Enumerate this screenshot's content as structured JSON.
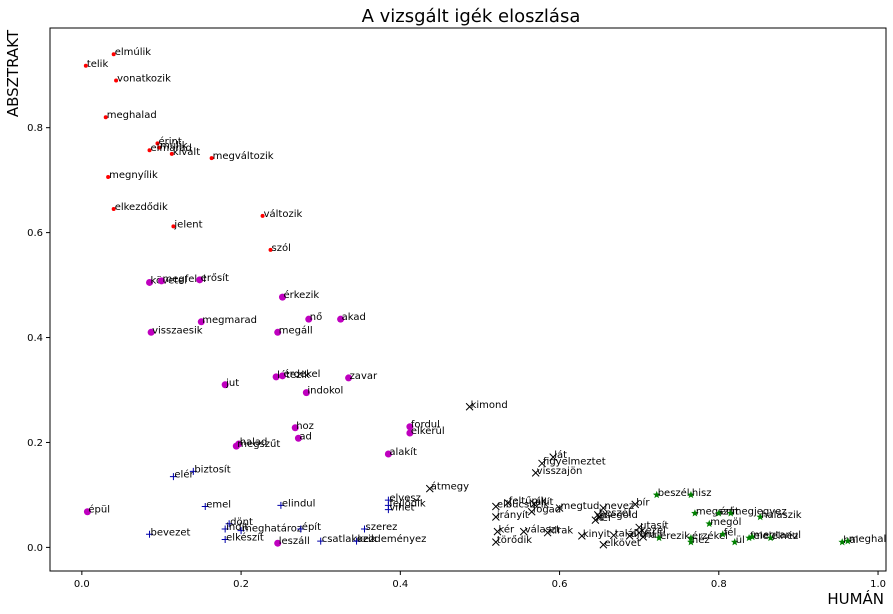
{
  "chart_data": {
    "type": "scatter",
    "title": "A vizsgált igék eloszlása",
    "xlabel": "HUMÁN",
    "ylabel": "ABSZTRAKT",
    "xlim": [
      -0.04,
      1.01
    ],
    "ylim": [
      -0.045,
      0.99
    ],
    "xticks": [
      "0.0",
      "0.2",
      "0.4",
      "0.6",
      "0.8",
      "1.0"
    ],
    "xtick_values": [
      0.0,
      0.2,
      0.4,
      0.6,
      0.8,
      1.0
    ],
    "yticks": [
      "0.0",
      "0.2",
      "0.4",
      "0.6",
      "0.8"
    ],
    "ytick_values": [
      0.0,
      0.2,
      0.4,
      0.6,
      0.8
    ],
    "grid": false,
    "legend": false,
    "series": [
      {
        "color": "#ff0000",
        "marker": "small-dot",
        "points": [
          {
            "x": 0.04,
            "y": 0.94,
            "label": "elmúlik"
          },
          {
            "x": 0.005,
            "y": 0.918,
            "label": "telik"
          },
          {
            "x": 0.043,
            "y": 0.89,
            "label": "vonatkozik"
          },
          {
            "x": 0.03,
            "y": 0.82,
            "label": "meghalad"
          },
          {
            "x": 0.095,
            "y": 0.77,
            "label": "érint"
          },
          {
            "x": 0.097,
            "y": 0.762,
            "label": "múlik"
          },
          {
            "x": 0.085,
            "y": 0.757,
            "label": "elmarad"
          },
          {
            "x": 0.113,
            "y": 0.75,
            "label": "kivált"
          },
          {
            "x": 0.163,
            "y": 0.742,
            "label": "megváltozik"
          },
          {
            "x": 0.033,
            "y": 0.706,
            "label": "megnyílik"
          },
          {
            "x": 0.04,
            "y": 0.645,
            "label": "elkezdődik"
          },
          {
            "x": 0.227,
            "y": 0.632,
            "label": "változik"
          },
          {
            "x": 0.115,
            "y": 0.612,
            "label": "jelent"
          },
          {
            "x": 0.237,
            "y": 0.567,
            "label": "szól"
          }
        ]
      },
      {
        "color": "#bf00bf",
        "marker": "dot",
        "points": [
          {
            "x": 0.085,
            "y": 0.505,
            "label": "követel"
          },
          {
            "x": 0.1,
            "y": 0.508,
            "label": "megfelel"
          },
          {
            "x": 0.148,
            "y": 0.51,
            "label": "erősít"
          },
          {
            "x": 0.252,
            "y": 0.477,
            "label": "érkezik"
          },
          {
            "x": 0.15,
            "y": 0.43,
            "label": "megmarad"
          },
          {
            "x": 0.285,
            "y": 0.435,
            "label": "nő"
          },
          {
            "x": 0.325,
            "y": 0.435,
            "label": "akad"
          },
          {
            "x": 0.087,
            "y": 0.41,
            "label": "visszaesik"
          },
          {
            "x": 0.246,
            "y": 0.41,
            "label": "megáll"
          },
          {
            "x": 0.244,
            "y": 0.325,
            "label": "létezik"
          },
          {
            "x": 0.252,
            "y": 0.327,
            "label": "érdekel"
          },
          {
            "x": 0.335,
            "y": 0.323,
            "label": "zavar"
          },
          {
            "x": 0.18,
            "y": 0.31,
            "label": "jut"
          },
          {
            "x": 0.282,
            "y": 0.295,
            "label": "indokol"
          },
          {
            "x": 0.412,
            "y": 0.23,
            "label": "fordul"
          },
          {
            "x": 0.412,
            "y": 0.218,
            "label": "elkerül"
          },
          {
            "x": 0.268,
            "y": 0.228,
            "label": "hoz"
          },
          {
            "x": 0.272,
            "y": 0.208,
            "label": "ad"
          },
          {
            "x": 0.197,
            "y": 0.197,
            "label": "halad"
          },
          {
            "x": 0.194,
            "y": 0.193,
            "label": "megszűt"
          },
          {
            "x": 0.385,
            "y": 0.178,
            "label": "alakít"
          },
          {
            "x": 0.007,
            "y": 0.068,
            "label": "épül"
          },
          {
            "x": 0.246,
            "y": 0.008,
            "label": "leszáll"
          }
        ]
      },
      {
        "color": "#0000aa",
        "marker": "plus",
        "points": [
          {
            "x": 0.115,
            "y": 0.135,
            "label": "elér"
          },
          {
            "x": 0.14,
            "y": 0.145,
            "label": "biztosít"
          },
          {
            "x": 0.155,
            "y": 0.078,
            "label": "emel"
          },
          {
            "x": 0.25,
            "y": 0.08,
            "label": "elindul"
          },
          {
            "x": 0.385,
            "y": 0.09,
            "label": "elvesz"
          },
          {
            "x": 0.385,
            "y": 0.08,
            "label": "fejlődik"
          },
          {
            "x": 0.385,
            "y": 0.072,
            "label": "vihet"
          },
          {
            "x": 0.185,
            "y": 0.045,
            "label": "dönt"
          },
          {
            "x": 0.18,
            "y": 0.035,
            "label": "indít"
          },
          {
            "x": 0.2,
            "y": 0.032,
            "label": "meghatároz"
          },
          {
            "x": 0.085,
            "y": 0.025,
            "label": "bevezet"
          },
          {
            "x": 0.18,
            "y": 0.015,
            "label": "elkészít"
          },
          {
            "x": 0.275,
            "y": 0.035,
            "label": "épít"
          },
          {
            "x": 0.355,
            "y": 0.035,
            "label": "szerez"
          },
          {
            "x": 0.3,
            "y": 0.012,
            "label": "csatlakozik"
          },
          {
            "x": 0.345,
            "y": 0.012,
            "label": "kezdeményez"
          }
        ]
      },
      {
        "color": "#000000",
        "marker": "cross",
        "points": [
          {
            "x": 0.487,
            "y": 0.268,
            "label": "kimond"
          },
          {
            "x": 0.592,
            "y": 0.172,
            "label": "lát"
          },
          {
            "x": 0.578,
            "y": 0.16,
            "label": "figyelmeztet"
          },
          {
            "x": 0.57,
            "y": 0.142,
            "label": "visszajön"
          },
          {
            "x": 0.437,
            "y": 0.112,
            "label": "átmegy"
          },
          {
            "x": 0.535,
            "y": 0.085,
            "label": "feltűnik"
          },
          {
            "x": 0.52,
            "y": 0.078,
            "label": "elbúcsúzik"
          },
          {
            "x": 0.568,
            "y": 0.083,
            "label": "állít"
          },
          {
            "x": 0.6,
            "y": 0.075,
            "label": "megtud"
          },
          {
            "x": 0.655,
            "y": 0.075,
            "label": "nevez"
          },
          {
            "x": 0.695,
            "y": 0.082,
            "label": "bír"
          },
          {
            "x": 0.565,
            "y": 0.068,
            "label": "fogad"
          },
          {
            "x": 0.52,
            "y": 0.058,
            "label": "irányít"
          },
          {
            "x": 0.648,
            "y": 0.062,
            "label": "beszél"
          },
          {
            "x": 0.65,
            "y": 0.058,
            "label": "megold"
          },
          {
            "x": 0.645,
            "y": 0.052,
            "label": "kér"
          },
          {
            "x": 0.7,
            "y": 0.038,
            "label": "utasít"
          },
          {
            "x": 0.7,
            "y": 0.028,
            "label": "kezel"
          },
          {
            "x": 0.522,
            "y": 0.03,
            "label": "kér"
          },
          {
            "x": 0.555,
            "y": 0.03,
            "label": "választ"
          },
          {
            "x": 0.585,
            "y": 0.028,
            "label": "kirak"
          },
          {
            "x": 0.628,
            "y": 0.022,
            "label": "kinyit"
          },
          {
            "x": 0.668,
            "y": 0.023,
            "label": "talál"
          },
          {
            "x": 0.688,
            "y": 0.022,
            "label": "ajánl"
          },
          {
            "x": 0.705,
            "y": 0.02,
            "label": "hall"
          },
          {
            "x": 0.52,
            "y": 0.01,
            "label": "törődik"
          },
          {
            "x": 0.655,
            "y": 0.005,
            "label": "elkövet"
          }
        ]
      },
      {
        "color": "#008000",
        "marker": "star",
        "points": [
          {
            "x": 0.722,
            "y": 0.1,
            "label": "beszél"
          },
          {
            "x": 0.765,
            "y": 0.1,
            "label": "hisz"
          },
          {
            "x": 0.77,
            "y": 0.065,
            "label": "megszűt"
          },
          {
            "x": 0.8,
            "y": 0.065,
            "label": "ért"
          },
          {
            "x": 0.815,
            "y": 0.065,
            "label": "megjegyez"
          },
          {
            "x": 0.852,
            "y": 0.058,
            "label": "halászik"
          },
          {
            "x": 0.788,
            "y": 0.045,
            "label": "megöl"
          },
          {
            "x": 0.725,
            "y": 0.018,
            "label": "érezik"
          },
          {
            "x": 0.765,
            "y": 0.01,
            "label": "néz"
          },
          {
            "x": 0.765,
            "y": 0.018,
            "label": "érzékel"
          },
          {
            "x": 0.805,
            "y": 0.025,
            "label": "fél"
          },
          {
            "x": 0.82,
            "y": 0.01,
            "label": "ül"
          },
          {
            "x": 0.838,
            "y": 0.018,
            "label": "felel"
          },
          {
            "x": 0.842,
            "y": 0.02,
            "label": "megtanul"
          },
          {
            "x": 0.865,
            "y": 0.018,
            "label": "elnéz"
          },
          {
            "x": 0.955,
            "y": 0.01,
            "label": "hal"
          },
          {
            "x": 0.962,
            "y": 0.012,
            "label": "meghal"
          }
        ]
      }
    ]
  }
}
